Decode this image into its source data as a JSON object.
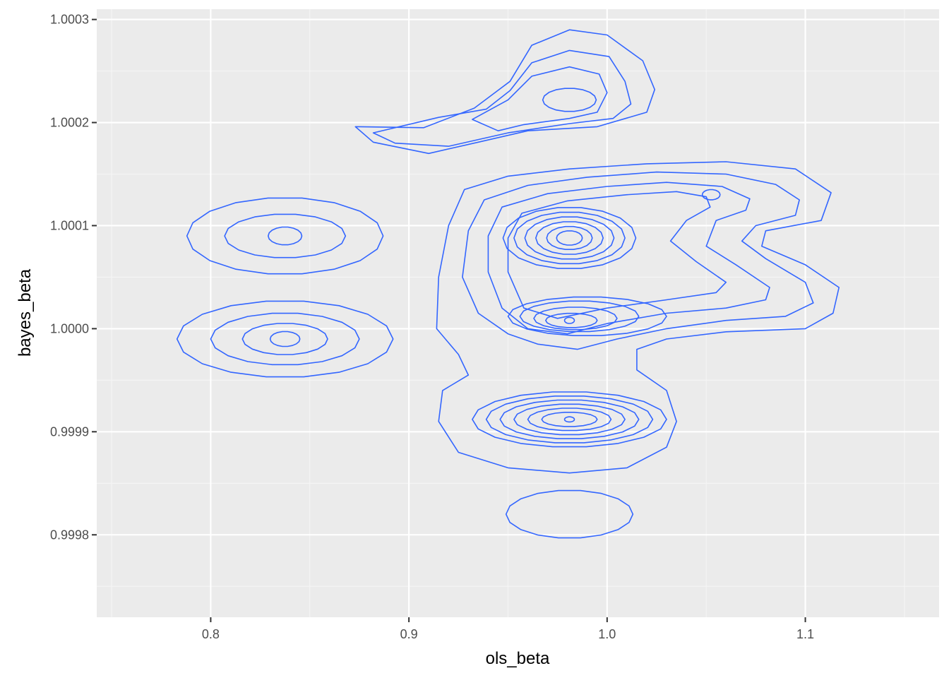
{
  "chart_data": {
    "type": "contour",
    "xlabel": "ols_beta",
    "ylabel": "bayes_beta",
    "xlim": [
      0.7425,
      1.1675
    ],
    "ylim": [
      0.99972,
      1.00031
    ],
    "x_ticks": [
      {
        "value": 0.8,
        "label": "0.8"
      },
      {
        "value": 0.9,
        "label": "0.9"
      },
      {
        "value": 1.0,
        "label": "1.0"
      },
      {
        "value": 1.1,
        "label": "1.1"
      }
    ],
    "x_minor_ticks": [
      0.75,
      0.85,
      0.95,
      1.05,
      1.15
    ],
    "y_ticks": [
      {
        "value": 0.9998,
        "label": "0.9998"
      },
      {
        "value": 0.9999,
        "label": "0.9999"
      },
      {
        "value": 1.0,
        "label": "1.0000"
      },
      {
        "value": 1.0001,
        "label": "1.0001"
      },
      {
        "value": 1.0002,
        "label": "1.0002"
      },
      {
        "value": 1.0003,
        "label": "1.0003"
      }
    ],
    "y_minor_ticks": [
      0.99975,
      0.99985,
      0.99995,
      1.00005,
      1.00015,
      1.00025
    ],
    "grid": true,
    "colors": {
      "panel": "#ebebeb",
      "grid_major": "#ffffff",
      "grid_minor": "#f5f5f5",
      "contour": "#3366ff",
      "tick": "#333333"
    },
    "contours": [
      {
        "cluster": "bottom",
        "cx": 0.981,
        "cy": 0.99982,
        "rx": 0.032,
        "ry": 2.33e-05
      },
      {
        "cluster": "left-top",
        "cx": 0.8375,
        "cy": 1.00009,
        "rx": 0.0495,
        "ry": 3.73e-05
      },
      {
        "cluster": "left-top",
        "cx": 0.8375,
        "cy": 1.00009,
        "rx": 0.0305,
        "ry": 2.13e-05
      },
      {
        "cluster": "left-top",
        "cx": 0.8375,
        "cy": 1.00009,
        "rx": 0.0085,
        "ry": 8.7e-06
      },
      {
        "cluster": "left-bottom",
        "cx": 0.8375,
        "cy": 0.99999,
        "rx": 0.0545,
        "ry": 3.73e-05
      },
      {
        "cluster": "left-bottom",
        "cx": 0.8375,
        "cy": 0.99999,
        "rx": 0.0375,
        "ry": 2.53e-05
      },
      {
        "cluster": "left-bottom",
        "cx": 0.8375,
        "cy": 0.99999,
        "rx": 0.0215,
        "ry": 1.53e-05
      },
      {
        "cluster": "left-bottom",
        "cx": 0.8375,
        "cy": 0.99999,
        "rx": 0.0075,
        "ry": 7.3e-06
      },
      {
        "cluster": "upper-middle",
        "cx": 0.981,
        "cy": 1.000222,
        "rx": 0.0135,
        "ry": 1.13e-05
      },
      {
        "cluster": "center-upper",
        "cx": 0.981,
        "cy": 1.000088,
        "rx": 0.0335,
        "ry": 3e-05
      },
      {
        "cluster": "center-upper",
        "cx": 0.981,
        "cy": 1.000088,
        "rx": 0.028,
        "ry": 2.53e-05
      },
      {
        "cluster": "center-upper",
        "cx": 0.981,
        "cy": 1.000088,
        "rx": 0.0225,
        "ry": 2.07e-05
      },
      {
        "cluster": "center-upper",
        "cx": 0.981,
        "cy": 1.000088,
        "rx": 0.017,
        "ry": 1.6e-05
      },
      {
        "cluster": "center-upper",
        "cx": 0.981,
        "cy": 1.000088,
        "rx": 0.0115,
        "ry": 1.13e-05
      },
      {
        "cluster": "center-upper",
        "cx": 0.981,
        "cy": 1.000088,
        "rx": 0.0065,
        "ry": 7e-06
      },
      {
        "cluster": "center-middle",
        "cx": 0.99,
        "cy": 1.000012,
        "rx": 0.04,
        "ry": 1.9e-05
      },
      {
        "cluster": "center-middle",
        "cx": 0.986,
        "cy": 1.000012,
        "rx": 0.03,
        "ry": 1.5e-05
      },
      {
        "cluster": "center-middle",
        "cx": 0.984,
        "cy": 1.00001,
        "rx": 0.021,
        "ry": 1.1e-05
      },
      {
        "cluster": "center-middle",
        "cx": 0.982,
        "cy": 1.000008,
        "rx": 0.013,
        "ry": 7e-06
      },
      {
        "cluster": "center-middle",
        "cx": 0.981,
        "cy": 1.000008,
        "rx": 0.0025,
        "ry": 3e-06
      },
      {
        "cluster": "center-lower",
        "cx": 0.981,
        "cy": 0.999912,
        "rx": 0.049,
        "ry": 2.7e-05
      },
      {
        "cluster": "center-lower",
        "cx": 0.981,
        "cy": 0.999912,
        "rx": 0.042,
        "ry": 2.3e-05
      },
      {
        "cluster": "center-lower",
        "cx": 0.981,
        "cy": 0.999912,
        "rx": 0.035,
        "ry": 1.9e-05
      },
      {
        "cluster": "center-lower",
        "cx": 0.981,
        "cy": 0.999912,
        "rx": 0.028,
        "ry": 1.5e-05
      },
      {
        "cluster": "center-lower",
        "cx": 0.981,
        "cy": 0.999912,
        "rx": 0.021,
        "ry": 1.1e-05
      },
      {
        "cluster": "center-lower",
        "cx": 0.981,
        "cy": 0.999912,
        "rx": 0.014,
        "ry": 7e-06
      },
      {
        "cluster": "center-lower",
        "cx": 0.981,
        "cy": 0.999912,
        "rx": 0.0025,
        "ry": 2.5e-06
      },
      {
        "cluster": "right-peak",
        "cx": 1.0525,
        "cy": 1.00013,
        "rx": 0.0045,
        "ry": 5e-06
      }
    ],
    "contour_polygons": [
      {
        "cluster": "upper-middle",
        "points": [
          [
            0.9075,
            1.000195
          ],
          [
            0.933,
            1.000214
          ],
          [
            0.951,
            1.00024
          ],
          [
            0.962,
            1.000275
          ],
          [
            0.981,
            1.00029
          ],
          [
            1.0,
            1.000285
          ],
          [
            1.018,
            1.00026
          ],
          [
            1.024,
            1.000232
          ],
          [
            1.02,
            1.00021
          ],
          [
            0.995,
            1.000196
          ],
          [
            0.96,
            1.000192
          ],
          [
            0.935,
            1.000181
          ],
          [
            0.91,
            1.00017
          ],
          [
            0.882,
            1.000181
          ],
          [
            0.873,
            1.000196
          ]
        ]
      },
      {
        "cluster": "upper-middle",
        "points": [
          [
            0.882,
            1.00019
          ],
          [
            0.915,
            1.000205
          ],
          [
            0.939,
            1.000213
          ],
          [
            0.951,
            1.000231
          ],
          [
            0.962,
            1.000258
          ],
          [
            0.981,
            1.00027
          ],
          [
            1.001,
            1.000264
          ],
          [
            1.009,
            1.00024
          ],
          [
            1.012,
            1.000218
          ],
          [
            1.003,
            1.000204
          ],
          [
            0.981,
            1.000199
          ],
          [
            0.95,
            1.00019
          ],
          [
            0.92,
            1.000177
          ],
          [
            0.893,
            1.00018
          ]
        ]
      },
      {
        "cluster": "upper-middle",
        "points": [
          [
            0.932,
            1.000203
          ],
          [
            0.95,
            1.000222
          ],
          [
            0.962,
            1.000245
          ],
          [
            0.981,
            1.000254
          ],
          [
            0.996,
            1.000247
          ],
          [
            1.0,
            1.000229
          ],
          [
            0.995,
            1.00021
          ],
          [
            0.981,
            1.000204
          ],
          [
            0.958,
            1.000198
          ],
          [
            0.945,
            1.000192
          ]
        ]
      },
      {
        "cluster": "center-outer",
        "points": [
          [
            0.92,
            1.0001
          ],
          [
            0.928,
            1.000135
          ],
          [
            0.95,
            1.000148
          ],
          [
            0.981,
            1.000155
          ],
          [
            1.02,
            1.00016
          ],
          [
            1.06,
            1.000162
          ],
          [
            1.095,
            1.000155
          ],
          [
            1.113,
            1.000132
          ],
          [
            1.108,
            1.000105
          ],
          [
            1.08,
            1.000095
          ],
          [
            1.078,
            1.00008
          ],
          [
            1.1,
            1.000062
          ],
          [
            1.117,
            1.00004
          ],
          [
            1.114,
            1.000015
          ],
          [
            1.1,
            1.0
          ],
          [
            1.06,
            0.999997
          ],
          [
            1.03,
            0.99999
          ],
          [
            1.015,
            0.99998
          ],
          [
            1.015,
            0.99996
          ],
          [
            1.03,
            0.99994
          ],
          [
            1.035,
            0.99991
          ],
          [
            1.03,
            0.999885
          ],
          [
            1.01,
            0.999865
          ],
          [
            0.981,
            0.99986
          ],
          [
            0.95,
            0.999865
          ],
          [
            0.925,
            0.99988
          ],
          [
            0.915,
            0.99991
          ],
          [
            0.917,
            0.99994
          ],
          [
            0.93,
            0.999955
          ],
          [
            0.925,
            0.999975
          ],
          [
            0.914,
            1.0
          ],
          [
            0.915,
            1.00005
          ]
        ]
      },
      {
        "cluster": "center-outer",
        "points": [
          [
            0.93,
            1.000095
          ],
          [
            0.938,
            1.000125
          ],
          [
            0.96,
            1.000139
          ],
          [
            0.99,
            1.000147
          ],
          [
            1.025,
            1.000152
          ],
          [
            1.06,
            1.00015
          ],
          [
            1.085,
            1.00014
          ],
          [
            1.097,
            1.000125
          ],
          [
            1.095,
            1.00011
          ],
          [
            1.075,
            1.0001
          ],
          [
            1.068,
            1.000085
          ],
          [
            1.08,
            1.000068
          ],
          [
            1.1,
            1.000045
          ],
          [
            1.104,
            1.000025
          ],
          [
            1.09,
            1.000012
          ],
          [
            1.06,
            1.000008
          ],
          [
            1.03,
            1.0
          ],
          [
            1.005,
            0.99999
          ],
          [
            0.985,
            0.99998
          ],
          [
            0.965,
            0.999985
          ],
          [
            0.95,
            0.999995
          ],
          [
            0.935,
            1.000015
          ],
          [
            0.927,
            1.00005
          ]
        ]
      },
      {
        "cluster": "center-outer",
        "points": [
          [
            0.94,
            1.00009
          ],
          [
            0.947,
            1.000118
          ],
          [
            0.97,
            1.000131
          ],
          [
            1.0,
            1.000138
          ],
          [
            1.03,
            1.000142
          ],
          [
            1.058,
            1.000138
          ],
          [
            1.072,
            1.000126
          ],
          [
            1.07,
            1.000115
          ],
          [
            1.055,
            1.000105
          ],
          [
            1.05,
            1.00008
          ],
          [
            1.065,
            1.000062
          ],
          [
            1.082,
            1.00004
          ],
          [
            1.08,
            1.000028
          ],
          [
            1.06,
            1.00002
          ],
          [
            1.03,
            1.000015
          ],
          [
            1.0,
            1.000005
          ],
          [
            0.98,
            0.999995
          ],
          [
            0.96,
            1.0
          ],
          [
            0.947,
            1.00002
          ],
          [
            0.94,
            1.000055
          ]
        ]
      },
      {
        "cluster": "center-outer",
        "points": [
          [
            0.95,
            1.000088
          ],
          [
            0.957,
            1.000112
          ],
          [
            0.98,
            1.000124
          ],
          [
            1.01,
            1.00013
          ],
          [
            1.035,
            1.000133
          ],
          [
            1.05,
            1.000128
          ],
          [
            1.052,
            1.000118
          ],
          [
            1.04,
            1.000105
          ],
          [
            1.032,
            1.000085
          ],
          [
            1.045,
            1.000065
          ],
          [
            1.06,
            1.000045
          ],
          [
            1.055,
            1.000035
          ],
          [
            1.03,
            1.000028
          ],
          [
            1.0,
            1.00002
          ],
          [
            0.975,
            1.00001
          ],
          [
            0.958,
            1.00002
          ],
          [
            0.95,
            1.000055
          ]
        ]
      }
    ]
  }
}
